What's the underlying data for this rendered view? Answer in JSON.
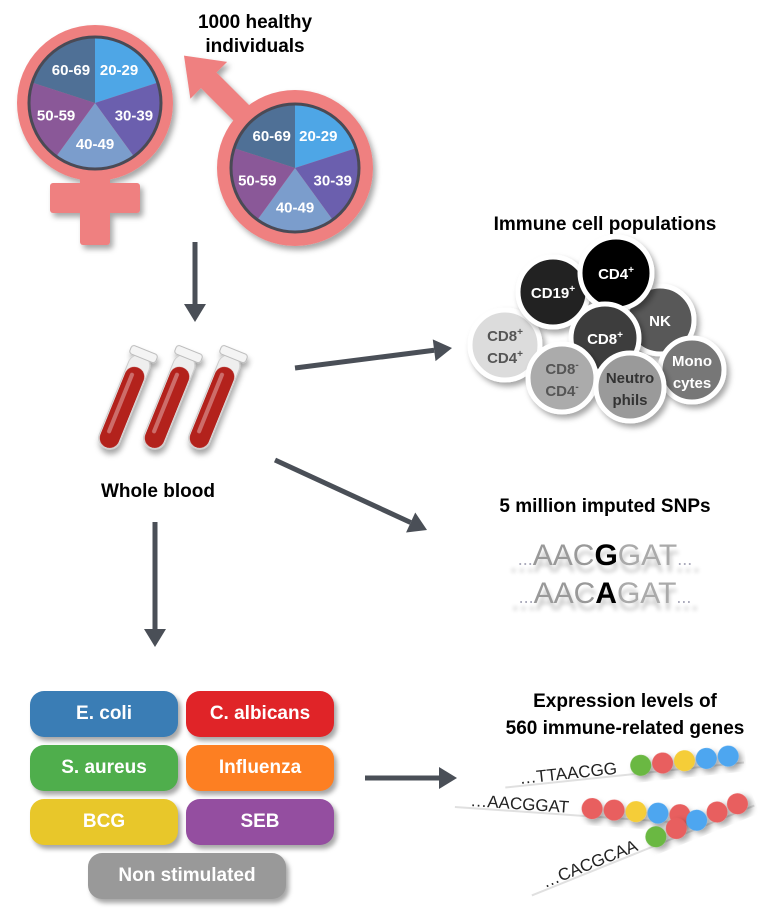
{
  "cohort": {
    "title_line1": "1000 healthy",
    "title_line2": "individuals"
  },
  "age_groups": [
    {
      "label": "20-29",
      "color": "#4ea6e6"
    },
    {
      "label": "30-39",
      "color": "#6b5fae"
    },
    {
      "label": "40-49",
      "color": "#7b9dcc"
    },
    {
      "label": "50-59",
      "color": "#8a5898"
    },
    {
      "label": "60-69",
      "color": "#4f7096"
    }
  ],
  "symbol_color": "#ef8080",
  "arrow_color": "#4a4f57",
  "blood": {
    "label": "Whole blood",
    "tube_color": "#b3201c"
  },
  "immune": {
    "title": "Immune cell populations",
    "cells": [
      {
        "id": "cd8p-cd4p",
        "line1": "CD8",
        "sup1": "+",
        "line2": "CD4",
        "sup2": "+",
        "fill": "#dcdcdc",
        "text": "#555555"
      },
      {
        "id": "cd19",
        "line1": "CD19",
        "sup1": "+",
        "fill": "#222222",
        "text": "#ffffff"
      },
      {
        "id": "nk",
        "line1": "NK",
        "fill": "#585858",
        "text": "#ffffff"
      },
      {
        "id": "cd4",
        "line1": "CD4",
        "sup1": "+",
        "fill": "#000000",
        "text": "#ffffff"
      },
      {
        "id": "cd8",
        "line1": "CD8",
        "sup1": "+",
        "fill": "#3c3c3c",
        "text": "#ffffff"
      },
      {
        "id": "cd8n-cd4n",
        "line1": "CD8",
        "sup1": "-",
        "line2": "CD4",
        "sup2": "-",
        "fill": "#ababab",
        "text": "#555555"
      },
      {
        "id": "monocytes",
        "line1": "Mono",
        "line2": "cytes",
        "fill": "#777777",
        "text": "#ffffff"
      },
      {
        "id": "neutrophils",
        "line1": "Neutro",
        "line2": "phils",
        "fill": "#9a9a9a",
        "text": "#333333"
      }
    ]
  },
  "snps": {
    "title": "5 million imputed SNPs",
    "rows": [
      {
        "prefix": "...",
        "before": "AAC",
        "variant": "G",
        "after": "GAT",
        "suffix": "..."
      },
      {
        "prefix": "...",
        "before": "AAC",
        "variant": "A",
        "after": "GAT",
        "suffix": "..."
      }
    ]
  },
  "stimuli": [
    {
      "label": "E. coli",
      "color": "#3a7db5"
    },
    {
      "label": "C. albicans",
      "color": "#e02428"
    },
    {
      "label": "S. aureus",
      "color": "#4fae4c"
    },
    {
      "label": "Influenza",
      "color": "#fd7f22"
    },
    {
      "label": "BCG",
      "color": "#e8c72a"
    },
    {
      "label": "SEB",
      "color": "#944ea0"
    },
    {
      "label": "Non stimulated",
      "color": "#999999"
    }
  ],
  "expression": {
    "title_line1": "Expression levels of",
    "title_line2": "560 immune-related genes",
    "rows": [
      {
        "sequence": "…TTAACGG",
        "beads": [
          "#6bb842",
          "#e85f5f",
          "#f5cd38",
          "#4ea6f0",
          "#4ea6f0"
        ]
      },
      {
        "sequence": "…AACGGAT",
        "beads": [
          "#e85f5f",
          "#e85f5f",
          "#f5cd38",
          "#4ea6f0",
          "#e85f5f"
        ]
      },
      {
        "sequence": "…CACGCAA",
        "beads": [
          "#6bb842",
          "#e85f5f",
          "#4ea6f0",
          "#e85f5f",
          "#e85f5f"
        ]
      }
    ]
  }
}
